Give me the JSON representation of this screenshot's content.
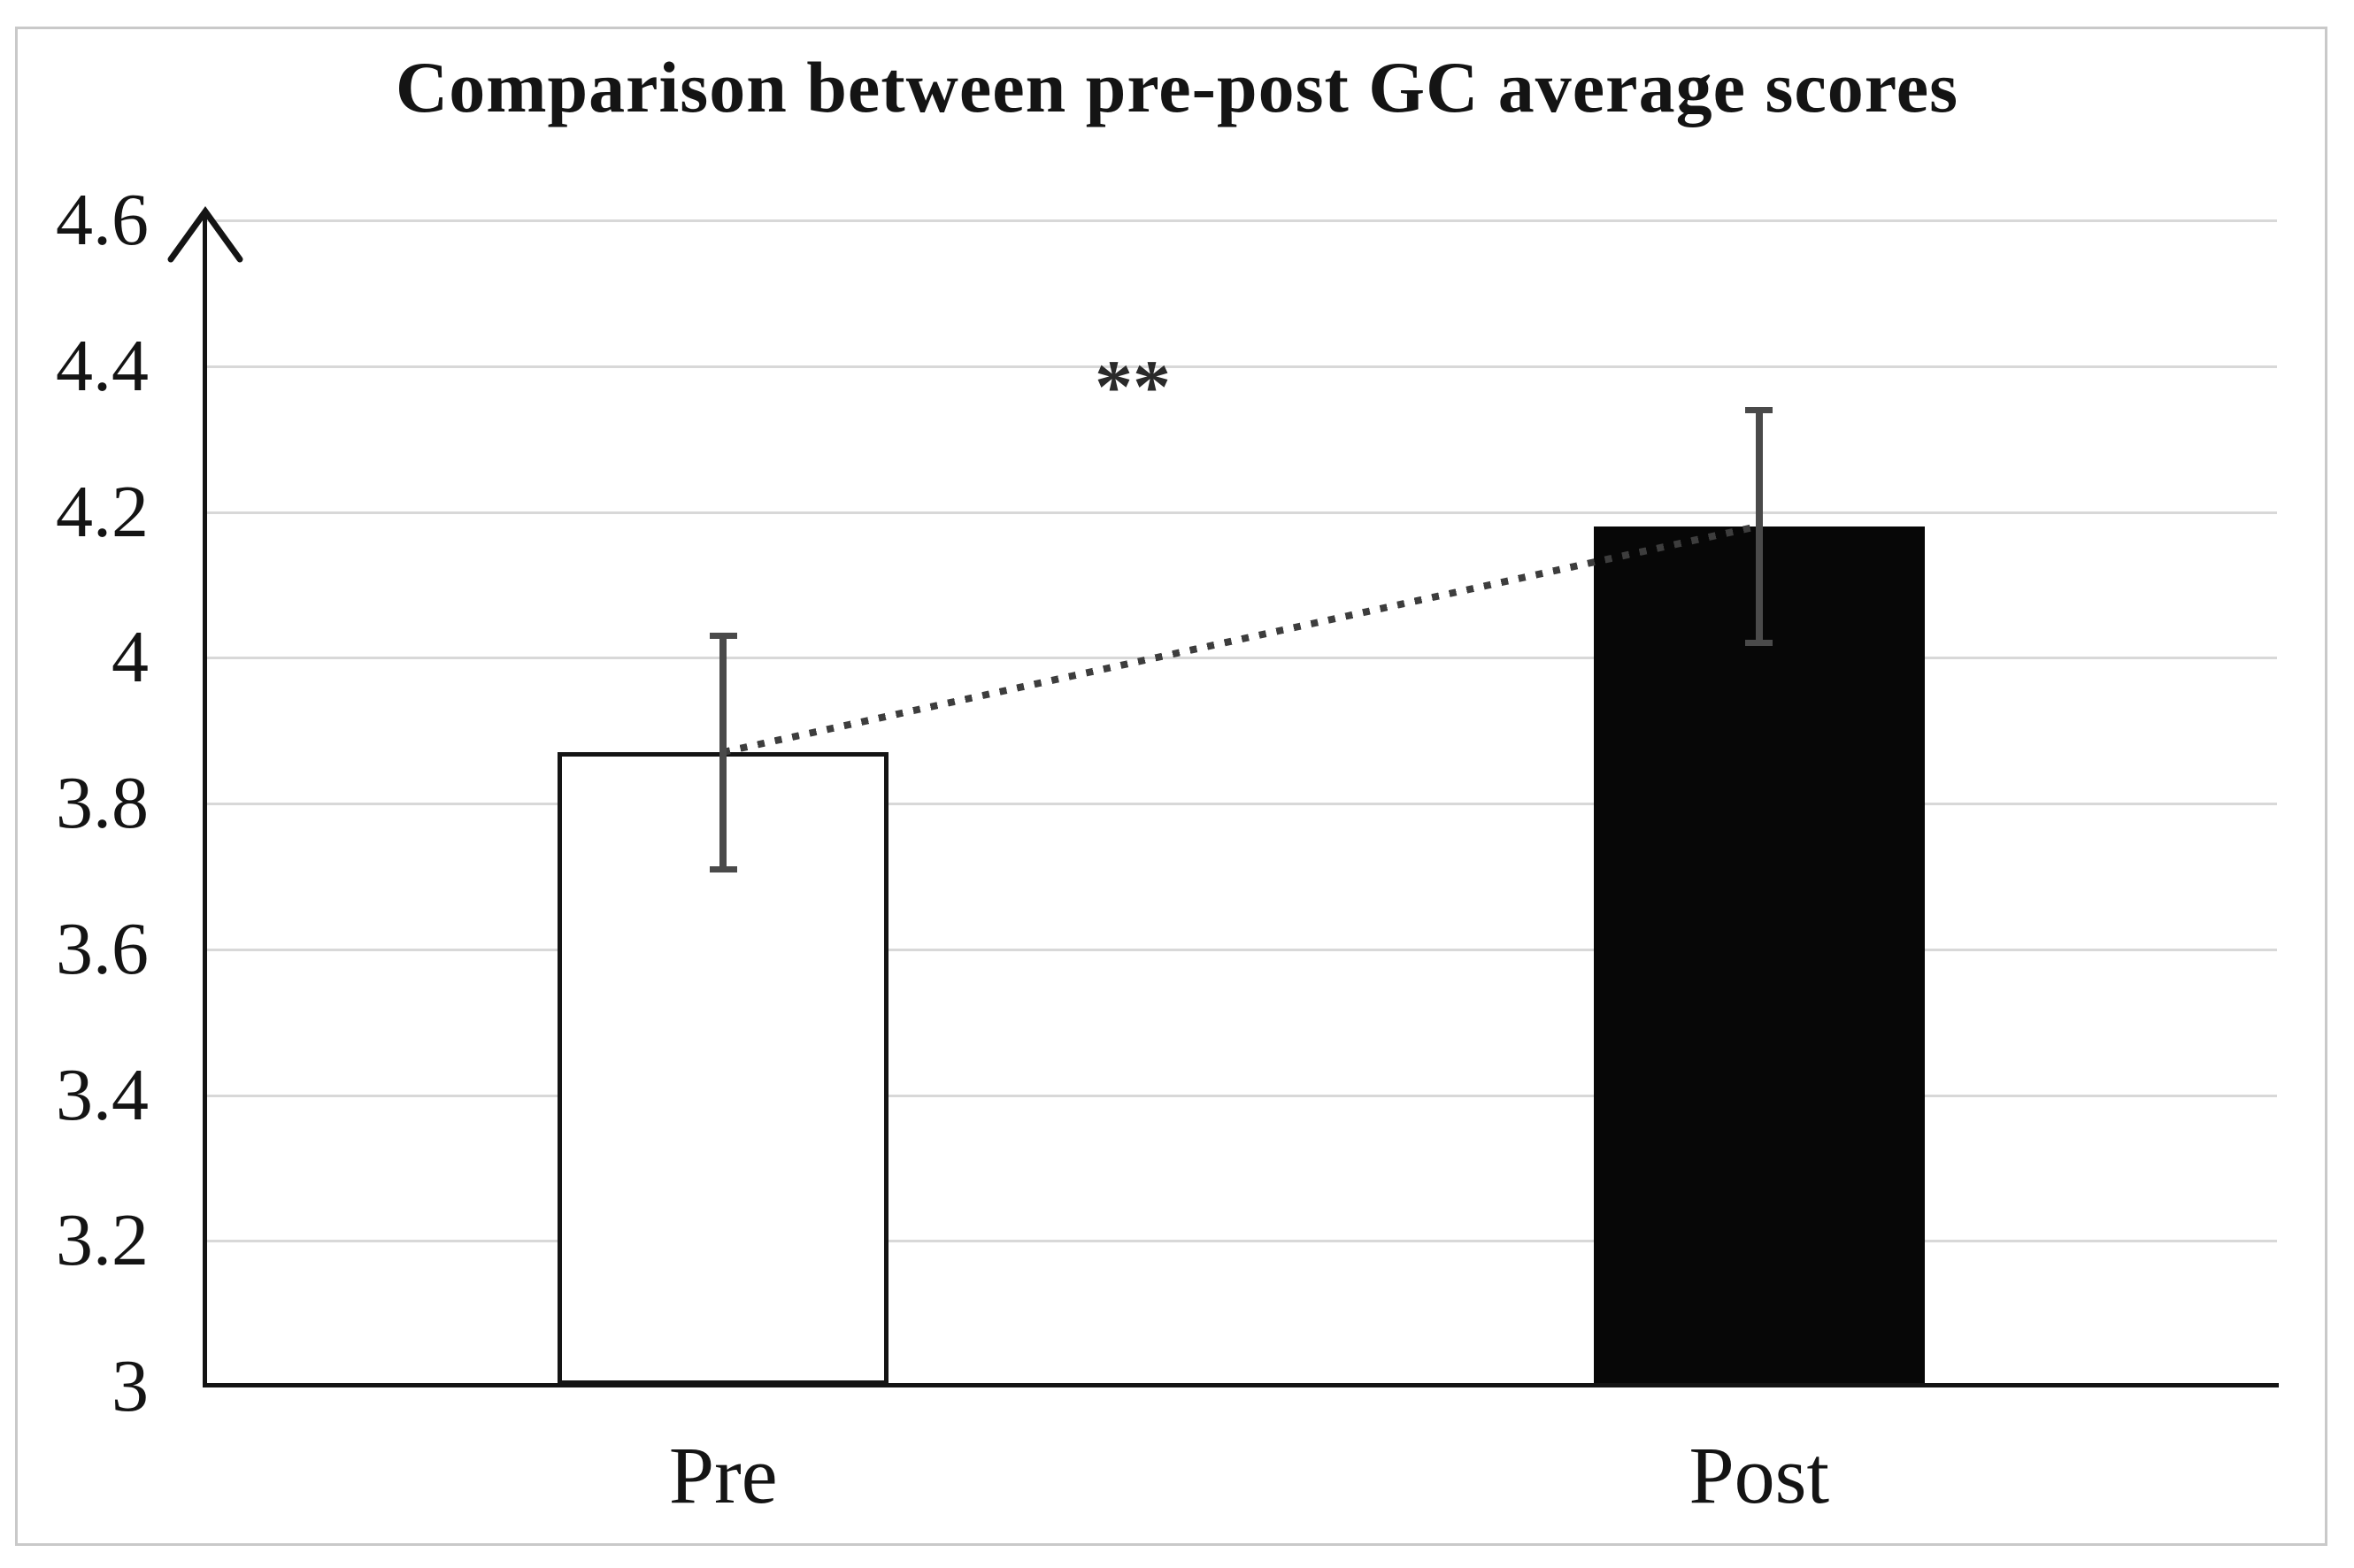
{
  "chart_data": {
    "type": "bar",
    "title": "Comparison between pre-post GC average scores",
    "categories": [
      "Pre",
      "Post"
    ],
    "series": [
      {
        "values": [
          3.87,
          4.18
        ],
        "error_low": [
          3.71,
          4.02
        ],
        "error_high": [
          4.03,
          4.34
        ]
      }
    ],
    "ylim": [
      3.0,
      4.6
    ],
    "yticks": [
      {
        "label": "3",
        "value": 3.0
      },
      {
        "label": "3.2",
        "value": 3.2
      },
      {
        "label": "3.4",
        "value": 3.4
      },
      {
        "label": "3.6",
        "value": 3.6
      },
      {
        "label": "3.8",
        "value": 3.8
      },
      {
        "label": "4",
        "value": 4.0
      },
      {
        "label": "4.2",
        "value": 4.2
      },
      {
        "label": "4.4",
        "value": 4.4
      },
      {
        "label": "4.6",
        "value": 4.6
      }
    ],
    "grid": true,
    "legend": false,
    "annotations": [
      {
        "text": "**"
      }
    ],
    "trendline": {
      "style": "dotted",
      "from": "Pre",
      "to": "Post"
    },
    "bar_styles": [
      {
        "fill": "#ffffff",
        "border": "#141414"
      },
      {
        "fill": "#070707",
        "border": "#070707"
      }
    ],
    "colors": {
      "gridline": "#d8d8d8",
      "axis": "#141414",
      "error_bar": "#4a4a4a",
      "trendline": "#3d3d3d",
      "text": "#141414",
      "frame_border": "#c9c9c9",
      "background": "#ffffff"
    }
  }
}
